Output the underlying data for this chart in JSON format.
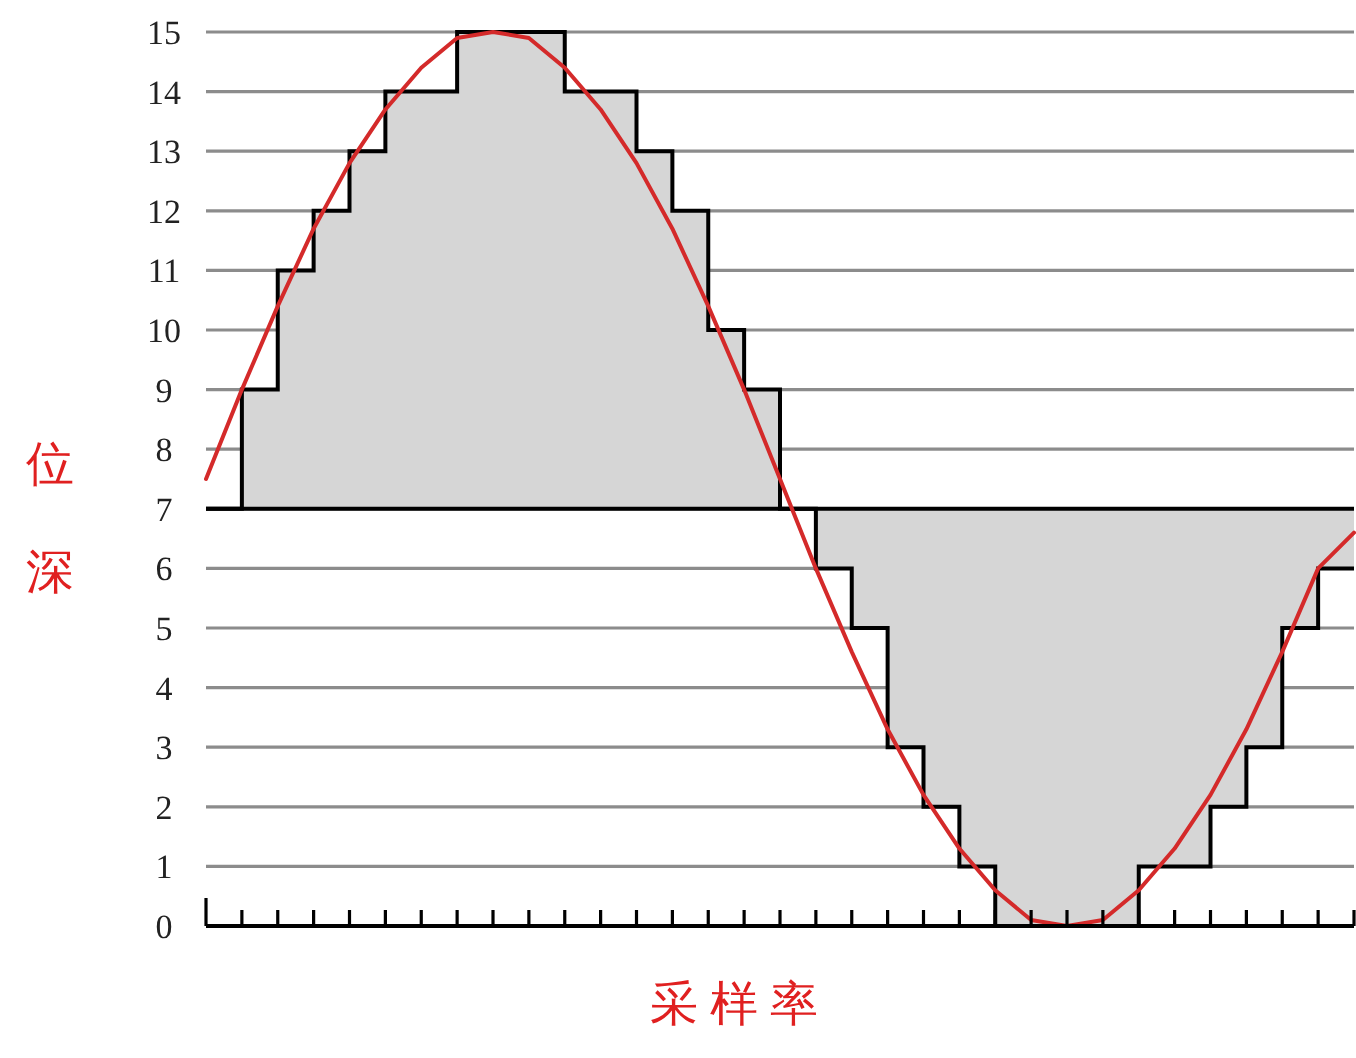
{
  "chart_data": {
    "type": "step",
    "xlabel": "采样率",
    "ylabel": "位深",
    "categories": [
      null,
      null,
      null,
      null,
      null,
      null,
      null,
      null,
      null,
      null,
      null,
      null,
      null,
      null,
      null,
      null,
      null,
      null,
      null,
      null,
      null,
      null,
      null,
      null,
      null,
      null,
      null,
      null,
      null,
      null,
      null,
      null,
      null
    ],
    "ylim": [
      0,
      15
    ],
    "yticks": [
      0,
      1,
      2,
      3,
      4,
      5,
      6,
      7,
      8,
      9,
      10,
      11,
      12,
      13,
      14,
      15
    ],
    "grid": "y",
    "tick_labels": "y",
    "ref_lines": [
      {
        "axis": "y",
        "value": 7,
        "color": "#000000"
      }
    ],
    "series": [
      {
        "type": "line",
        "color": "#d42a2a",
        "values": [
          7.5,
          9.0,
          10.4,
          11.7,
          12.8,
          13.7,
          14.4,
          14.9,
          15,
          14.9,
          14.4,
          13.7,
          12.8,
          11.7,
          10.4,
          9.0,
          7.5,
          6.0,
          4.6,
          3.3,
          2.2,
          1.3,
          0.6,
          0.1,
          0,
          0.1,
          0.6,
          1.3,
          2.2,
          3.3,
          4.6,
          6.0,
          6.6
        ]
      },
      {
        "color": "#000000",
        "values": [
          7,
          9,
          11,
          12,
          13,
          14,
          14,
          15,
          15,
          15,
          14,
          14,
          13,
          12,
          10,
          9,
          7,
          6,
          5,
          3,
          2,
          1,
          0,
          0,
          0,
          0,
          1,
          1,
          2,
          3,
          5,
          6,
          6
        ]
      }
    ]
  }
}
